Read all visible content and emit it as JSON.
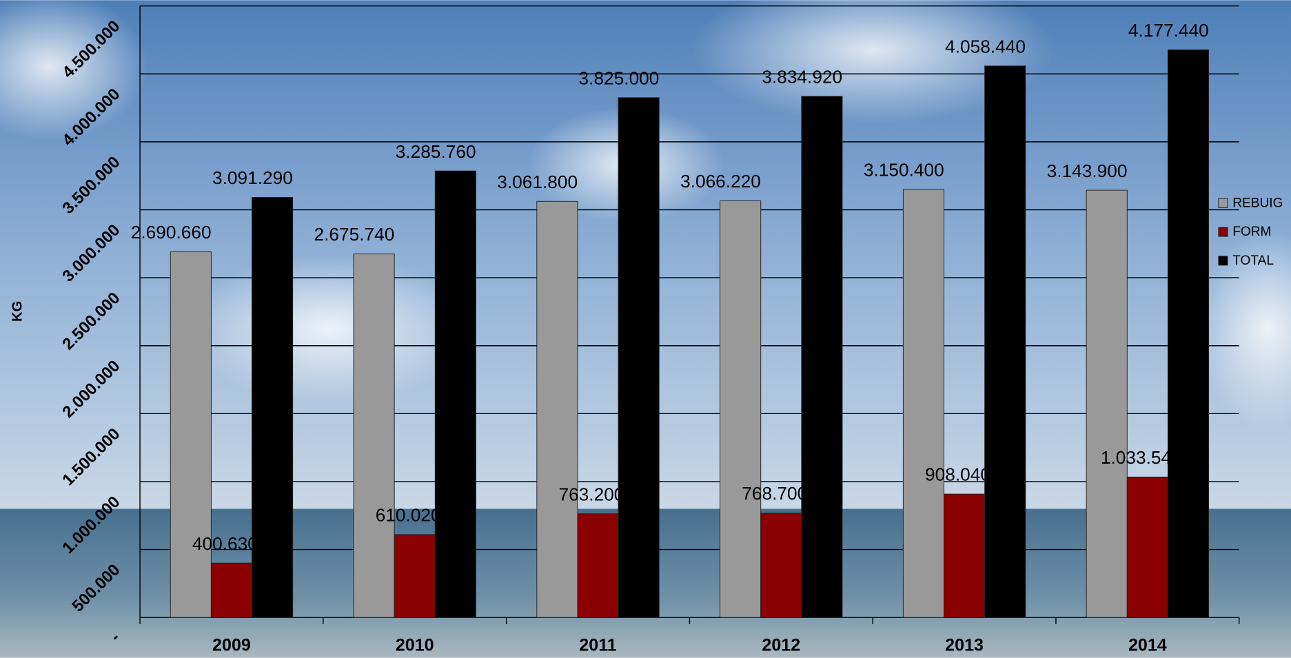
{
  "chart_data": {
    "type": "bar",
    "y_label": "KG",
    "categories": [
      "2009",
      "2010",
      "2011",
      "2012",
      "2013",
      "2014"
    ],
    "series": [
      {
        "name": "REBUIG",
        "color": "#999999",
        "values": [
          2690660,
          2675740,
          3061800,
          3066220,
          3150400,
          3143900
        ],
        "value_labels": [
          "2.690.660",
          "2.675.740",
          "3.061.800",
          "3.066.220",
          "3.150.400",
          "3.143.900"
        ]
      },
      {
        "name": "FORM",
        "color": "#8b0000",
        "values": [
          400630,
          610020,
          763200,
          768700,
          908040,
          1033540
        ],
        "value_labels": [
          "400.630",
          "610.020",
          "763.200",
          "768.700",
          "908.040",
          "1.033.540"
        ]
      },
      {
        "name": "TOTAL",
        "color": "#000000",
        "values": [
          3091290,
          3285760,
          3825000,
          3834920,
          4058440,
          4177440
        ],
        "value_labels": [
          "3.091.290",
          "3.285.760",
          "3.825.000",
          "3.834.920",
          "4.058.440",
          "4.177.440"
        ]
      }
    ],
    "ylim": [
      0,
      4500000
    ],
    "yticks": [
      {
        "value": 0,
        "label": "-"
      },
      {
        "value": 500000,
        "label": "500.000"
      },
      {
        "value": 1000000,
        "label": "1.000.000"
      },
      {
        "value": 1500000,
        "label": "1.500.000"
      },
      {
        "value": 2000000,
        "label": "2.000.000"
      },
      {
        "value": 2500000,
        "label": "2.500.000"
      },
      {
        "value": 3000000,
        "label": "3.000.000"
      },
      {
        "value": 3500000,
        "label": "3.500.000"
      },
      {
        "value": 4000000,
        "label": "4.000.000"
      },
      {
        "value": 4500000,
        "label": "4.500.000"
      }
    ],
    "grid": true,
    "legend": "right"
  }
}
